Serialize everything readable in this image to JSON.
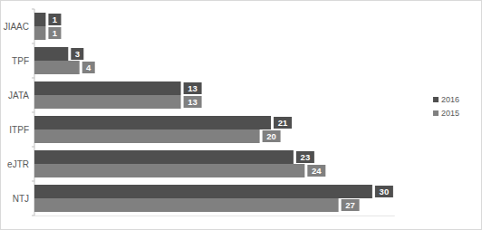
{
  "chart_data": {
    "type": "bar",
    "orientation": "horizontal",
    "categories": [
      "JIAAC",
      "TPF",
      "JATA",
      "ITPF",
      "eJTR",
      "NTJ"
    ],
    "series": [
      {
        "name": "2016",
        "color": "#4f4f4f",
        "values": [
          1,
          3,
          13,
          21,
          23,
          30
        ]
      },
      {
        "name": "2015",
        "color": "#808080",
        "values": [
          1,
          4,
          13,
          20,
          24,
          27
        ]
      }
    ],
    "xlim": [
      0,
      32
    ],
    "data_labels": true,
    "tick_labels": false,
    "grid": false,
    "legend": "right"
  }
}
